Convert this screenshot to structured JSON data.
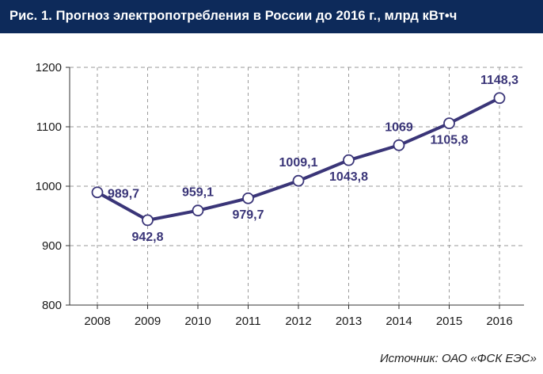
{
  "header": {
    "title": "Рис. 1. Прогноз электропотребления в России до 2016 г., млрд кВт•ч"
  },
  "source": "Источник: ОАО «ФСК ЕЭС»",
  "colors": {
    "title_bg": "#0d2a5a",
    "line": "#3a3578",
    "grid": "#9a9a9a"
  },
  "chart_data": {
    "type": "line",
    "title": "Рис. 1. Прогноз электропотребления в России до 2016 г., млрд кВт•ч",
    "xlabel": "",
    "ylabel": "",
    "categories": [
      "2008",
      "2009",
      "2010",
      "2011",
      "2012",
      "2013",
      "2014",
      "2015",
      "2016"
    ],
    "series": [
      {
        "values": [
          989.7,
          942.8,
          959.1,
          979.7,
          1009.1,
          1043.8,
          1069,
          1105.8,
          1148.3
        ],
        "data_labels": [
          "989,7",
          "942,8",
          "959,1",
          "979,7",
          "1009,1",
          "1043,8",
          "1069",
          "1105,8",
          "1148,3"
        ]
      }
    ],
    "ylim": [
      800,
      1200
    ],
    "yticks": [
      800,
      900,
      1000,
      1100,
      1200
    ],
    "grid": true,
    "legend": "none"
  }
}
